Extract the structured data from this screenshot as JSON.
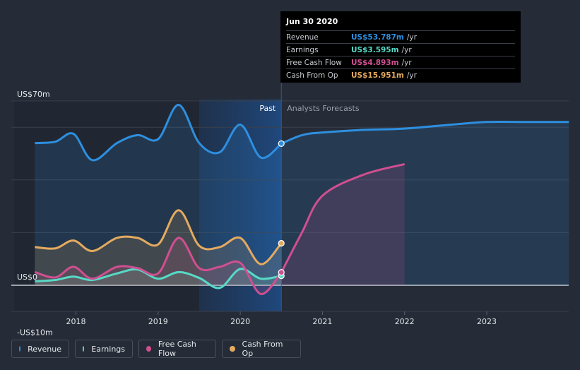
{
  "chart_data": {
    "type": "area",
    "y_unit": "US$ millions",
    "ylim": [
      -10,
      70
    ],
    "y_tick_labels": [
      "US$70m",
      "US$0",
      "-US$10m"
    ],
    "x_tick_labels": [
      "2018",
      "2019",
      "2020",
      "2021",
      "2022",
      "2023"
    ],
    "x_range": [
      2017.25,
      2024.0
    ],
    "x_ticks": [
      2018,
      2019,
      2020,
      2021,
      2022,
      2023
    ],
    "past_end": 2020.5,
    "highlight_start": 2019.5,
    "past_label": "Past",
    "forecast_label": "Analysts Forecasts",
    "series": [
      {
        "name": "Revenue",
        "color": "#2e8fe0",
        "past": [
          [
            2017.5,
            54
          ],
          [
            2017.75,
            54.5
          ],
          [
            2017.97,
            57.5
          ],
          [
            2018.2,
            47.5
          ],
          [
            2018.5,
            54
          ],
          [
            2018.75,
            57
          ],
          [
            2019.0,
            55.5
          ],
          [
            2019.25,
            68.5
          ],
          [
            2019.5,
            54
          ],
          [
            2019.75,
            50.5
          ],
          [
            2020.0,
            61
          ],
          [
            2020.25,
            48.5
          ],
          [
            2020.5,
            53.787
          ]
        ],
        "forecast": [
          [
            2020.5,
            53.787
          ],
          [
            2020.75,
            57
          ],
          [
            2021.0,
            58
          ],
          [
            2021.5,
            59
          ],
          [
            2022.0,
            59.5
          ],
          [
            2022.5,
            60.8
          ],
          [
            2023.0,
            62
          ],
          [
            2023.5,
            62
          ],
          [
            2024.0,
            62
          ]
        ]
      },
      {
        "name": "Earnings",
        "color": "#57d9c6",
        "past": [
          [
            2017.5,
            1.5
          ],
          [
            2017.75,
            2
          ],
          [
            2017.97,
            3.3
          ],
          [
            2018.2,
            2
          ],
          [
            2018.5,
            4.5
          ],
          [
            2018.75,
            6
          ],
          [
            2019.0,
            2.5
          ],
          [
            2019.25,
            5
          ],
          [
            2019.5,
            2.8
          ],
          [
            2019.75,
            -1
          ],
          [
            2020.0,
            6.2
          ],
          [
            2020.25,
            2.5
          ],
          [
            2020.5,
            3.595
          ]
        ],
        "forecast": []
      },
      {
        "name": "Free Cash Flow",
        "color": "#d04f90",
        "past": [
          [
            2017.5,
            5
          ],
          [
            2017.75,
            3
          ],
          [
            2017.97,
            7
          ],
          [
            2018.2,
            2.5
          ],
          [
            2018.5,
            7
          ],
          [
            2018.75,
            6.5
          ],
          [
            2019.0,
            4.5
          ],
          [
            2019.25,
            18
          ],
          [
            2019.5,
            6.5
          ],
          [
            2019.75,
            7
          ],
          [
            2020.0,
            8.5
          ],
          [
            2020.25,
            -3.3
          ],
          [
            2020.5,
            4.893
          ]
        ],
        "forecast": [
          [
            2020.5,
            4.893
          ],
          [
            2020.75,
            20
          ],
          [
            2021.0,
            34
          ],
          [
            2021.5,
            42
          ],
          [
            2022.0,
            46
          ]
        ]
      },
      {
        "name": "Cash From Op",
        "color": "#e5aa5f",
        "past": [
          [
            2017.5,
            14.5
          ],
          [
            2017.75,
            14
          ],
          [
            2017.97,
            17
          ],
          [
            2018.2,
            13
          ],
          [
            2018.5,
            18
          ],
          [
            2018.75,
            18
          ],
          [
            2019.0,
            15.5
          ],
          [
            2019.25,
            28.5
          ],
          [
            2019.5,
            15
          ],
          [
            2019.75,
            14.5
          ],
          [
            2020.0,
            18
          ],
          [
            2020.25,
            8
          ],
          [
            2020.5,
            15.951
          ]
        ],
        "forecast": []
      }
    ]
  },
  "tooltip": {
    "date": "Jun 30 2020",
    "rows": [
      {
        "label": "Revenue",
        "value": "US$53.787m",
        "unit": "/yr",
        "color": "#2e8fe0"
      },
      {
        "label": "Earnings",
        "value": "US$3.595m",
        "unit": "/yr",
        "color": "#57d9c6"
      },
      {
        "label": "Free Cash Flow",
        "value": "US$4.893m",
        "unit": "/yr",
        "color": "#d04f90"
      },
      {
        "label": "Cash From Op",
        "value": "US$15.951m",
        "unit": "/yr",
        "color": "#e5aa5f"
      }
    ]
  },
  "legend": [
    {
      "label": "Revenue",
      "color": "#2e8fe0"
    },
    {
      "label": "Earnings",
      "color": "#57d9c6"
    },
    {
      "label": "Free Cash Flow",
      "color": "#d04f90"
    },
    {
      "label": "Cash From Op",
      "color": "#e5aa5f"
    }
  ]
}
